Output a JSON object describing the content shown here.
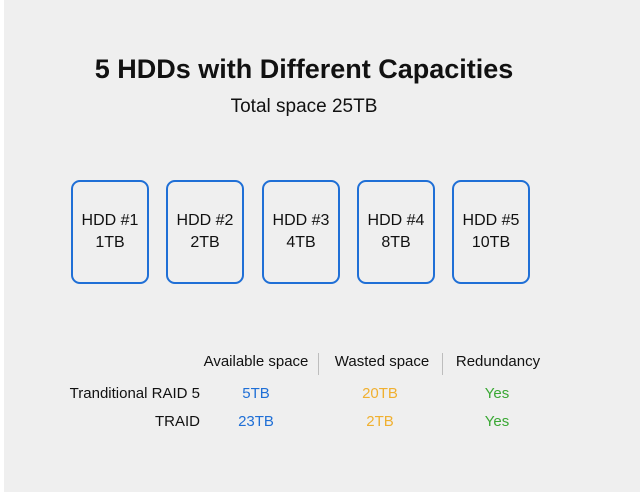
{
  "title": "5 HDDs with Different Capacities",
  "subtitle": "Total space 25TB",
  "hdds": [
    {
      "name": "HDD #1",
      "capacity": "1TB"
    },
    {
      "name": "HDD #2",
      "capacity": "2TB"
    },
    {
      "name": "HDD #3",
      "capacity": "4TB"
    },
    {
      "name": "HDD #4",
      "capacity": "8TB"
    },
    {
      "name": "HDD #5",
      "capacity": "10TB"
    }
  ],
  "table": {
    "headers": [
      "Available space",
      "Wasted space",
      "Redundancy"
    ],
    "rows": [
      {
        "label": "Tranditional RAID 5",
        "available": "5TB",
        "wasted": "20TB",
        "redundancy": "Yes"
      },
      {
        "label": "TRAID",
        "available": "23TB",
        "wasted": "2TB",
        "redundancy": "Yes"
      }
    ]
  },
  "colors": {
    "hdd_border": "#1f6fd6",
    "available": "#1f6fd6",
    "wasted": "#f0b030",
    "redundancy": "#3aa834"
  }
}
